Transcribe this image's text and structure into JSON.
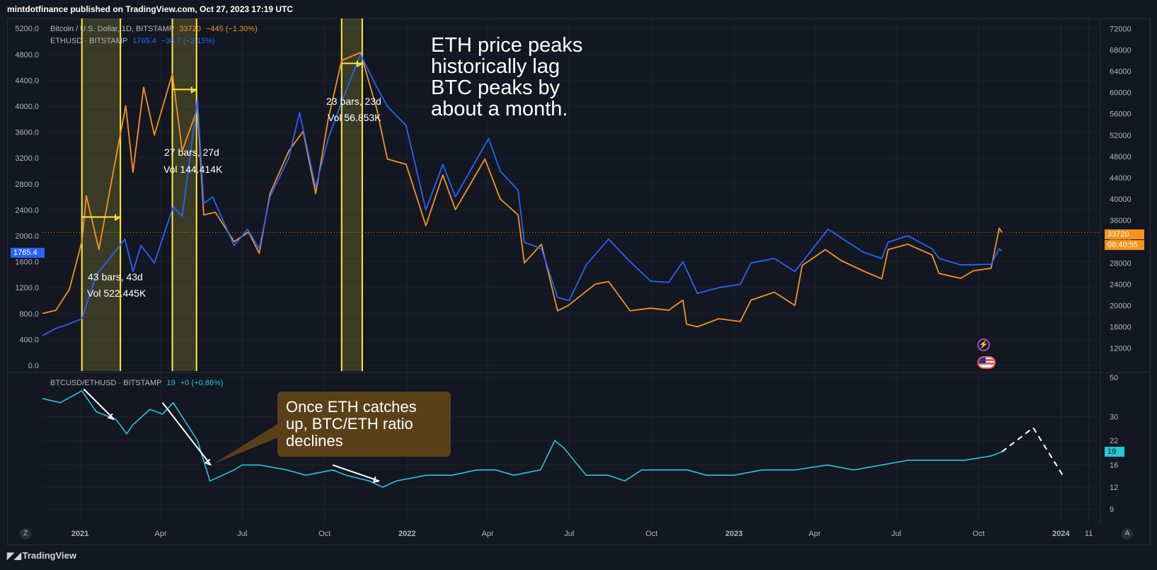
{
  "publisher_line": "mintdotfinance published on TradingView.com, Oct 27, 2023 17:19 UTC",
  "brand": "TradingView",
  "legend": {
    "btc": {
      "name": "Bitcoin / U.S. Dollar, 1D, BITSTAMP",
      "price": "33720",
      "change": "−445 (−1.30%)"
    },
    "eth": {
      "name": "ETHUSD · BITSTAMP",
      "price": "1765.4",
      "change": "−38.7 (−2.15%)"
    },
    "ratio": {
      "name": "BTCUSD/ETHUSD · BITSTAMP",
      "price": "19",
      "change": "+0 (+0.86%)"
    }
  },
  "annotations": {
    "headline": [
      "ETH price peaks",
      "historically lag",
      "BTC peaks by",
      "about a month."
    ],
    "ratio_box": [
      "Once ETH catches",
      "up, BTC/ETH ratio",
      "declines"
    ],
    "m1": {
      "bars": "43 bars, 43d",
      "vol": "Vol 522.445K"
    },
    "m2": {
      "bars": "27 bars, 27d",
      "vol": "Vol 144.414K"
    },
    "m3": {
      "bars": "23 bars, 23d",
      "vol": "Vol 56.853K"
    }
  },
  "price_tags": {
    "eth": "1765.4",
    "btc_price": "33720",
    "btc_time": "06:40:55",
    "ratio": "19"
  },
  "corner_buttons": {
    "left": "Z",
    "right": "A"
  },
  "colors": {
    "btc": "#f7931a",
    "eth": "#2962ff",
    "ratio": "#26c6da",
    "highlight": "#ffeb3b",
    "bg": "#131722"
  },
  "chart_data": {
    "type": "line",
    "panes": [
      {
        "name": "price",
        "left_axis": {
          "label": "ETHUSD",
          "ticks": [
            0,
            400,
            800,
            1200,
            1600,
            2000,
            2400,
            2800,
            3200,
            3600,
            4000,
            4400,
            4800,
            5200
          ],
          "tick_labels": [
            "0.0",
            "400.0",
            "800.0",
            "1200.0",
            "1600.0",
            "2000.0",
            "2400.0",
            "2800.0",
            "3200.0",
            "3600.0",
            "4000.0",
            "4400.0",
            "4800.0",
            "5200.0"
          ],
          "range": [
            0,
            5300
          ]
        },
        "right_axis": {
          "label": "BTCUSD",
          "ticks": [
            12000,
            16000,
            20000,
            24000,
            28000,
            32000,
            36000,
            40000,
            44000,
            48000,
            52000,
            56000,
            60000,
            64000,
            68000,
            72000
          ],
          "range": [
            8750,
            73250
          ]
        },
        "series": [
          {
            "name": "Bitcoin / U.S. Dollar, 1D, BITSTAMP",
            "axis": "right",
            "x": [
              "2020-11-20",
              "2020-12-05",
              "2020-12-20",
              "2021-01-03",
              "2021-01-08",
              "2021-01-22",
              "2021-02-08",
              "2021-02-21",
              "2021-03-01",
              "2021-03-13",
              "2021-03-25",
              "2021-04-14",
              "2021-04-25",
              "2021-05-12",
              "2021-05-19",
              "2021-06-01",
              "2021-06-22",
              "2021-07-08",
              "2021-07-20",
              "2021-08-01",
              "2021-08-22",
              "2021-09-07",
              "2021-09-21",
              "2021-10-05",
              "2021-10-20",
              "2021-11-10",
              "2021-11-28",
              "2021-12-10",
              "2021-12-31",
              "2022-01-22",
              "2022-02-10",
              "2022-02-24",
              "2022-03-29",
              "2022-04-15",
              "2022-05-05",
              "2022-05-12",
              "2022-05-31",
              "2022-06-18",
              "2022-06-30",
              "2022-07-30",
              "2022-08-14",
              "2022-09-07",
              "2022-09-30",
              "2022-10-20",
              "2022-11-05",
              "2022-11-09",
              "2022-11-21",
              "2022-12-15",
              "2023-01-08",
              "2023-01-20",
              "2023-02-15",
              "2023-03-10",
              "2023-03-18",
              "2023-04-13",
              "2023-04-30",
              "2023-05-25",
              "2023-06-15",
              "2023-06-22",
              "2023-07-14",
              "2023-08-10",
              "2023-08-18",
              "2023-09-11",
              "2023-09-25",
              "2023-10-15",
              "2023-10-24",
              "2023-10-27"
            ],
            "values": [
              18500,
              19100,
              23000,
              32000,
              40600,
              30500,
              46000,
              57500,
              45000,
              61000,
              52000,
              63500,
              49000,
              57000,
              37000,
              37500,
              32000,
              33800,
              29800,
              41000,
              49000,
              52700,
              41000,
              55000,
              66000,
              67500,
              57000,
              47500,
              46500,
              35000,
              44500,
              38000,
              47500,
              40000,
              37000,
              28000,
              31500,
              19000,
              20000,
              24000,
              24500,
              19000,
              19500,
              19100,
              21000,
              16500,
              16000,
              17500,
              17000,
              21000,
              22500,
              20000,
              27500,
              30500,
              28500,
              26500,
              25000,
              30500,
              31500,
              29500,
              26000,
              25100,
              26500,
              27000,
              34500,
              33720
            ]
          },
          {
            "name": "ETHUSD · BITSTAMP",
            "axis": "left",
            "x": [
              "2020-11-20",
              "2020-12-05",
              "2020-12-20",
              "2021-01-03",
              "2021-01-19",
              "2021-02-03",
              "2021-02-20",
              "2021-03-01",
              "2021-03-10",
              "2021-03-25",
              "2021-04-15",
              "2021-04-25",
              "2021-05-12",
              "2021-05-19",
              "2021-05-29",
              "2021-06-22",
              "2021-07-07",
              "2021-07-20",
              "2021-08-01",
              "2021-08-22",
              "2021-09-03",
              "2021-09-21",
              "2021-10-05",
              "2021-10-21",
              "2021-11-10",
              "2021-11-28",
              "2021-12-10",
              "2021-12-31",
              "2022-01-22",
              "2022-02-10",
              "2022-02-24",
              "2022-04-02",
              "2022-04-15",
              "2022-05-05",
              "2022-05-12",
              "2022-05-31",
              "2022-06-18",
              "2022-07-01",
              "2022-07-20",
              "2022-08-14",
              "2022-09-07",
              "2022-09-30",
              "2022-10-20",
              "2022-11-05",
              "2022-11-21",
              "2022-12-15",
              "2023-01-08",
              "2023-01-20",
              "2023-02-15",
              "2023-03-10",
              "2023-04-16",
              "2023-05-25",
              "2023-06-15",
              "2023-06-22",
              "2023-07-14",
              "2023-08-10",
              "2023-08-18",
              "2023-09-11",
              "2023-10-15",
              "2023-10-24",
              "2023-10-27"
            ],
            "values": [
              460,
              570,
              640,
              720,
              1400,
              1650,
              1950,
              1450,
              1850,
              1580,
              2450,
              2300,
              4100,
              2500,
              2600,
              1850,
              2100,
              1800,
              2600,
              3200,
              3900,
              2750,
              3500,
              4100,
              4800,
              4300,
              4000,
              3700,
              2400,
              3100,
              2600,
              3500,
              3000,
              2700,
              1900,
              1800,
              1050,
              1000,
              1550,
              1950,
              1600,
              1300,
              1280,
              1600,
              1110,
              1200,
              1250,
              1580,
              1650,
              1450,
              2100,
              1750,
              1650,
              1900,
              2000,
              1800,
              1650,
              1550,
              1560,
              1800,
              1765.4
            ]
          }
        ]
      },
      {
        "name": "ratio",
        "axis": {
          "scale": "log",
          "ticks": [
            9,
            12,
            16,
            22,
            30,
            50
          ],
          "range": [
            8,
            50
          ]
        },
        "series": [
          {
            "name": "BTCUSD/ETHUSD · BITSTAMP",
            "x": [
              "2020-11-20",
              "2020-12-10",
              "2021-01-03",
              "2021-01-19",
              "2021-02-10",
              "2021-02-22",
              "2021-03-01",
              "2021-03-20",
              "2021-04-03",
              "2021-04-15",
              "2021-05-12",
              "2021-05-26",
              "2021-06-22",
              "2021-07-01",
              "2021-07-20",
              "2021-08-20",
              "2021-09-10",
              "2021-10-10",
              "2021-10-25",
              "2021-11-20",
              "2021-12-05",
              "2021-12-20",
              "2022-01-22",
              "2022-02-20",
              "2022-03-20",
              "2022-04-10",
              "2022-04-30",
              "2022-05-30",
              "2022-06-15",
              "2022-06-25",
              "2022-07-20",
              "2022-08-14",
              "2022-09-01",
              "2022-09-20",
              "2022-10-20",
              "2022-11-10",
              "2022-12-01",
              "2023-01-01",
              "2023-02-01",
              "2023-03-10",
              "2023-04-15",
              "2023-05-15",
              "2023-06-15",
              "2023-07-14",
              "2023-08-15",
              "2023-09-15",
              "2023-10-15",
              "2023-10-27"
            ],
            "values": [
              38,
              36,
              42,
              32,
              29,
              24,
              27,
              33,
              31,
              36,
              22,
              13,
              15,
              16,
              16,
              15,
              14,
              15,
              14,
              13,
              12,
              13,
              14,
              14,
              15,
              15,
              14,
              15,
              22,
              20,
              14,
              14,
              13,
              15,
              15,
              15,
              14,
              14,
              15,
              15,
              16,
              15,
              16,
              17,
              17,
              17,
              18,
              19
            ]
          },
          {
            "name": "projection",
            "style": "dashed",
            "x": [
              "2023-10-27",
              "2023-12-01",
              "2024-01-03"
            ],
            "values": [
              19,
              26,
              14
            ]
          }
        ]
      }
    ],
    "x_axis": {
      "tick_labels": [
        "2021",
        "Apr",
        "Jul",
        "Oct",
        "2022",
        "Apr",
        "Jul",
        "Oct",
        "2023",
        "Apr",
        "Jul",
        "Oct",
        "2024",
        "11"
      ]
    },
    "highlight_ranges": [
      {
        "from": "2021-01-03",
        "to": "2021-02-15",
        "label": "43 bars, 43d"
      },
      {
        "from": "2021-04-14",
        "to": "2021-05-11",
        "label": "27 bars, 27d"
      },
      {
        "from": "2021-10-20",
        "to": "2021-11-12",
        "label": "23 bars, 23d"
      }
    ],
    "current_price_line": 33720
  }
}
